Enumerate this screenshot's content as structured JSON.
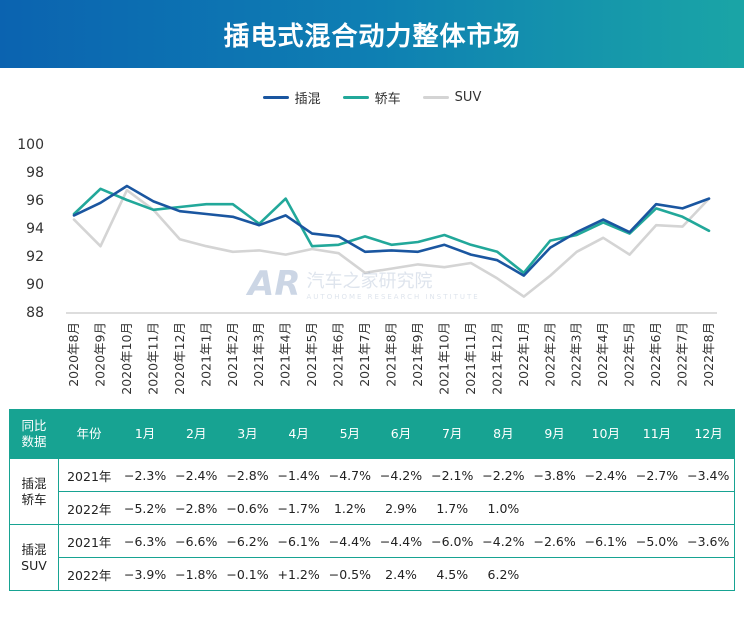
{
  "title": "插电式混合动力整体市场",
  "legend": [
    {
      "name": "插混",
      "color": "#1a56a0"
    },
    {
      "name": "轿车",
      "color": "#22a89a"
    },
    {
      "name": "SUV",
      "color": "#d4d4d4"
    }
  ],
  "watermark": {
    "logo": "AR",
    "cn": "汽车之家研究院",
    "en": "AUTOHOME RESEARCH INSTITUTE"
  },
  "chart_data": {
    "type": "line",
    "categories": [
      "2020年8月",
      "2020年9月",
      "2020年10月",
      "2020年11月",
      "2020年12月",
      "2021年1月",
      "2021年2月",
      "2021年3月",
      "2021年4月",
      "2021年5月",
      "2021年6月",
      "2021年7月",
      "2021年8月",
      "2021年9月",
      "2021年10月",
      "2021年11月",
      "2021年12月",
      "2022年1月",
      "2022年2月",
      "2022年3月",
      "2022年4月",
      "2022年5月",
      "2022年6月",
      "2022年7月",
      "2022年8月"
    ],
    "series": [
      {
        "name": "插混",
        "color": "#1a56a0",
        "values": [
          94.9,
          95.8,
          97.0,
          95.9,
          95.2,
          95.0,
          94.8,
          94.2,
          94.9,
          93.6,
          93.4,
          92.3,
          92.4,
          92.3,
          92.8,
          92.1,
          91.7,
          90.6,
          92.6,
          93.7,
          94.6,
          93.7,
          95.7,
          95.4,
          96.1
        ]
      },
      {
        "name": "轿车",
        "color": "#22a89a",
        "values": [
          95.0,
          96.8,
          96.0,
          95.3,
          95.5,
          95.7,
          95.7,
          94.3,
          96.1,
          92.7,
          92.8,
          93.4,
          92.8,
          93.0,
          93.5,
          92.8,
          92.3,
          90.8,
          93.1,
          93.5,
          94.4,
          93.6,
          95.4,
          94.8,
          93.8
        ]
      },
      {
        "name": "SUV",
        "color": "#d4d4d4",
        "values": [
          94.6,
          92.7,
          96.7,
          95.3,
          93.2,
          92.7,
          92.3,
          92.4,
          92.1,
          92.5,
          92.2,
          90.8,
          91.1,
          91.4,
          91.2,
          91.5,
          90.4,
          89.1,
          90.6,
          92.3,
          93.3,
          92.1,
          94.2,
          94.1,
          96.1
        ]
      }
    ],
    "ylim": [
      88,
      100
    ],
    "yticks": [
      88,
      90,
      92,
      94,
      96,
      98,
      100
    ],
    "grid": false
  },
  "table": {
    "header": [
      "同比\n数据",
      "年份",
      "1月",
      "2月",
      "3月",
      "4月",
      "5月",
      "6月",
      "7月",
      "8月",
      "9月",
      "10月",
      "11月",
      "12月"
    ],
    "groups": [
      {
        "label": "插混\n轿车",
        "rows": [
          {
            "year": "2021年",
            "values": [
              "−2.3%",
              "−2.4%",
              "−2.8%",
              "−1.4%",
              "−4.7%",
              "−4.2%",
              "−2.1%",
              "−2.2%",
              "−3.8%",
              "−2.4%",
              "−2.7%",
              "−3.4%"
            ]
          },
          {
            "year": "2022年",
            "values": [
              "−5.2%",
              "−2.8%",
              "−0.6%",
              "−1.7%",
              "1.2%",
              "2.9%",
              "1.7%",
              "1.0%",
              "",
              "",
              "",
              ""
            ]
          }
        ]
      },
      {
        "label": "插混\nSUV",
        "rows": [
          {
            "year": "2021年",
            "values": [
              "−6.3%",
              "−6.6%",
              "−6.2%",
              "−6.1%",
              "−4.4%",
              "−4.4%",
              "−6.0%",
              "−4.2%",
              "−2.6%",
              "−6.1%",
              "−5.0%",
              "−3.6%"
            ]
          },
          {
            "year": "2022年",
            "values": [
              "−3.9%",
              "−1.8%",
              "−0.1%",
              "+1.2%",
              "−0.5%",
              "2.4%",
              "4.5%",
              "6.2%",
              "",
              "",
              "",
              ""
            ]
          }
        ]
      }
    ]
  }
}
